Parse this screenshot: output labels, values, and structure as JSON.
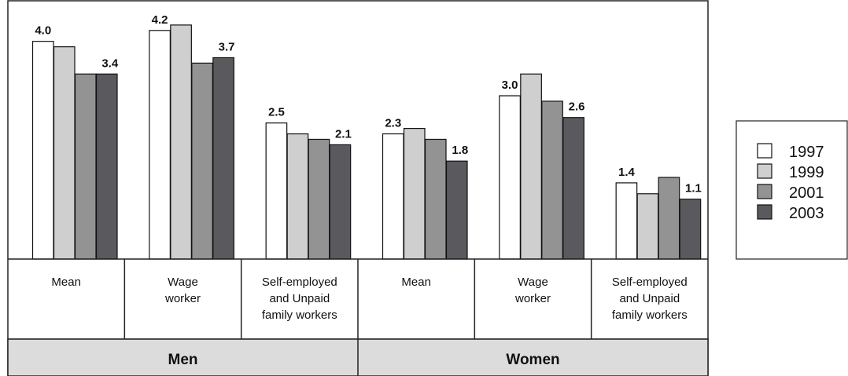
{
  "chart_data": {
    "type": "bar",
    "title": "",
    "xlabel": "",
    "ylabel": "",
    "ylim": [
      0,
      4.5
    ],
    "grid": false,
    "legend_position": "right",
    "groups": [
      {
        "label": "Men",
        "categories": [
          "Mean",
          "Wage worker",
          "Self-employed and Unpaid family workers"
        ]
      },
      {
        "label": "Women",
        "categories": [
          "Mean",
          "Wage worker",
          "Self-employed and Unpaid family workers"
        ]
      }
    ],
    "category_lines": [
      [
        "Mean"
      ],
      [
        "Wage",
        "worker"
      ],
      [
        "Self-employed",
        "and Unpaid",
        "family workers"
      ],
      [
        "Mean"
      ],
      [
        "Wage",
        "worker"
      ],
      [
        "Self-employed",
        "and Unpaid",
        "family workers"
      ]
    ],
    "series": [
      {
        "name": "1997",
        "color": "#ffffff",
        "values": [
          4.0,
          4.2,
          2.5,
          2.3,
          3.0,
          1.4
        ]
      },
      {
        "name": "1999",
        "color": "#cfcfcf",
        "values": [
          3.9,
          4.3,
          2.3,
          2.4,
          3.4,
          1.2
        ]
      },
      {
        "name": "2001",
        "color": "#939393",
        "values": [
          3.4,
          3.6,
          2.2,
          2.2,
          2.9,
          1.5
        ]
      },
      {
        "name": "2003",
        "color": "#5a5a5e",
        "values": [
          3.4,
          3.7,
          2.1,
          1.8,
          2.6,
          1.1
        ]
      }
    ],
    "data_labels": [
      {
        "category": 0,
        "series": 0,
        "text": "4.0"
      },
      {
        "category": 0,
        "series": 3,
        "text": "3.4"
      },
      {
        "category": 1,
        "series": 0,
        "text": "4.2"
      },
      {
        "category": 1,
        "series": 3,
        "text": "3.7"
      },
      {
        "category": 2,
        "series": 0,
        "text": "2.5"
      },
      {
        "category": 2,
        "series": 3,
        "text": "2.1"
      },
      {
        "category": 3,
        "series": 0,
        "text": "2.3"
      },
      {
        "category": 3,
        "series": 3,
        "text": "1.8"
      },
      {
        "category": 4,
        "series": 0,
        "text": "3.0"
      },
      {
        "category": 4,
        "series": 3,
        "text": "2.6"
      },
      {
        "category": 5,
        "series": 0,
        "text": "1.4"
      },
      {
        "category": 5,
        "series": 3,
        "text": "1.1"
      }
    ]
  }
}
